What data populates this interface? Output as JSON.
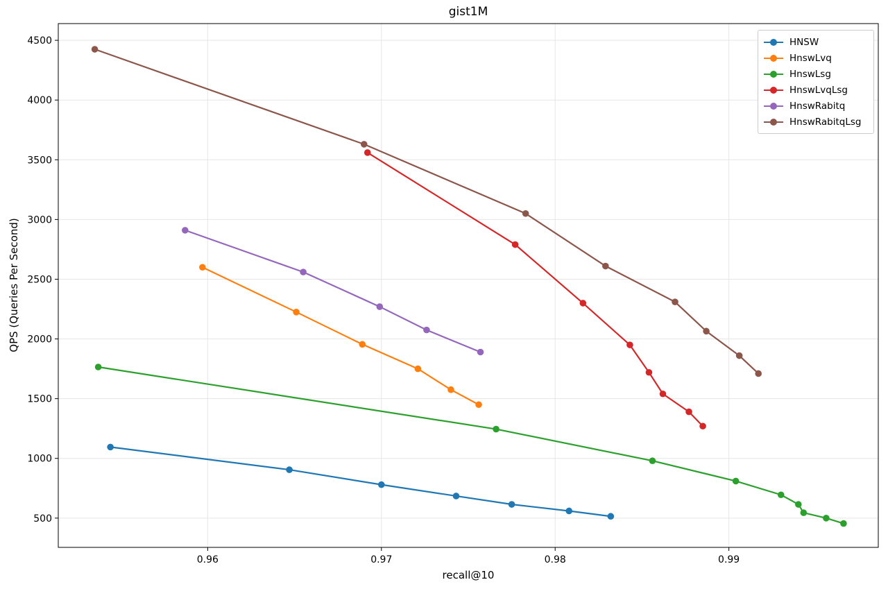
{
  "title": "gist1M",
  "chart_data": {
    "type": "line",
    "title": "gist1M",
    "xlabel": "recall@10",
    "ylabel": "QPS (Queries Per Second)",
    "xlim": [
      0.9514,
      0.9986
    ],
    "ylim": [
      255,
      4640
    ],
    "x_ticks": [
      0.96,
      0.97,
      0.98,
      0.99
    ],
    "y_ticks": [
      500,
      1000,
      1500,
      2000,
      2500,
      3000,
      3500,
      4000,
      4500
    ],
    "grid": true,
    "grid_color": "#e6e6e6",
    "spine_color": "#000000",
    "legend_position": "upper right",
    "series": [
      {
        "name": "HNSW",
        "color": "#1f77b4",
        "points": [
          [
            0.9544,
            1095
          ],
          [
            0.9647,
            905
          ],
          [
            0.97,
            780
          ],
          [
            0.9743,
            685
          ],
          [
            0.9775,
            615
          ],
          [
            0.9808,
            560
          ],
          [
            0.9832,
            515
          ]
        ]
      },
      {
        "name": "HnswLvq",
        "color": "#ff7f0e",
        "points": [
          [
            0.9597,
            2600
          ],
          [
            0.9651,
            2225
          ],
          [
            0.9689,
            1955
          ],
          [
            0.9721,
            1750
          ],
          [
            0.974,
            1575
          ],
          [
            0.9756,
            1450
          ]
        ]
      },
      {
        "name": "HnswLsg",
        "color": "#2ca02c",
        "points": [
          [
            0.9537,
            1765
          ],
          [
            0.9766,
            1245
          ],
          [
            0.9856,
            980
          ],
          [
            0.9904,
            810
          ],
          [
            0.993,
            695
          ],
          [
            0.994,
            615
          ],
          [
            0.9943,
            545
          ],
          [
            0.9956,
            500
          ],
          [
            0.9966,
            455
          ]
        ]
      },
      {
        "name": "HnswLvqLsg",
        "color": "#d62728",
        "points": [
          [
            0.9692,
            3560
          ],
          [
            0.9777,
            2790
          ],
          [
            0.9816,
            2300
          ],
          [
            0.9843,
            1950
          ],
          [
            0.9854,
            1720
          ],
          [
            0.9862,
            1540
          ],
          [
            0.9877,
            1390
          ],
          [
            0.9885,
            1270
          ]
        ]
      },
      {
        "name": "HnswRabitq",
        "color": "#9467bd",
        "points": [
          [
            0.9587,
            2910
          ],
          [
            0.9655,
            2560
          ],
          [
            0.9699,
            2270
          ],
          [
            0.9726,
            2075
          ],
          [
            0.9757,
            1890
          ]
        ]
      },
      {
        "name": "HnswRabitqLsg",
        "color": "#8c564b",
        "points": [
          [
            0.9535,
            4425
          ],
          [
            0.969,
            3630
          ],
          [
            0.9783,
            3050
          ],
          [
            0.9829,
            2610
          ],
          [
            0.9869,
            2310
          ],
          [
            0.9887,
            2065
          ],
          [
            0.9906,
            1860
          ],
          [
            0.9917,
            1710
          ]
        ]
      }
    ]
  }
}
